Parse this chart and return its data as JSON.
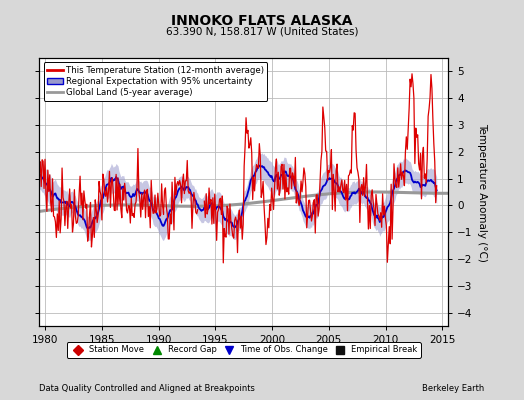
{
  "title": "INNOKO FLATS ALASKA",
  "subtitle": "63.390 N, 158.817 W (United States)",
  "xlabel_left": "Data Quality Controlled and Aligned at Breakpoints",
  "xlabel_right": "Berkeley Earth",
  "ylabel": "Temperature Anomaly (°C)",
  "xlim": [
    1979.5,
    2015.5
  ],
  "ylim": [
    -4.5,
    5.5
  ],
  "yticks": [
    -4,
    -3,
    -2,
    -1,
    0,
    1,
    2,
    3,
    4,
    5
  ],
  "xticks": [
    1980,
    1985,
    1990,
    1995,
    2000,
    2005,
    2010,
    2015
  ],
  "bg_color": "#d8d8d8",
  "plot_bg_color": "#ffffff",
  "grid_color": "#bbbbbb",
  "red_line_color": "#dd0000",
  "blue_line_color": "#0000cc",
  "blue_fill_color": "#9999cc",
  "gray_line_color": "#999999",
  "legend_items": [
    "This Temperature Station (12-month average)",
    "Regional Expectation with 95% uncertainty",
    "Global Land (5-year average)"
  ],
  "bottom_legend": [
    {
      "label": "Station Move",
      "color": "#cc0000",
      "marker": "D"
    },
    {
      "label": "Record Gap",
      "color": "#008800",
      "marker": "^"
    },
    {
      "label": "Time of Obs. Change",
      "color": "#0000cc",
      "marker": "v"
    },
    {
      "label": "Empirical Break",
      "color": "#111111",
      "marker": "s"
    }
  ]
}
